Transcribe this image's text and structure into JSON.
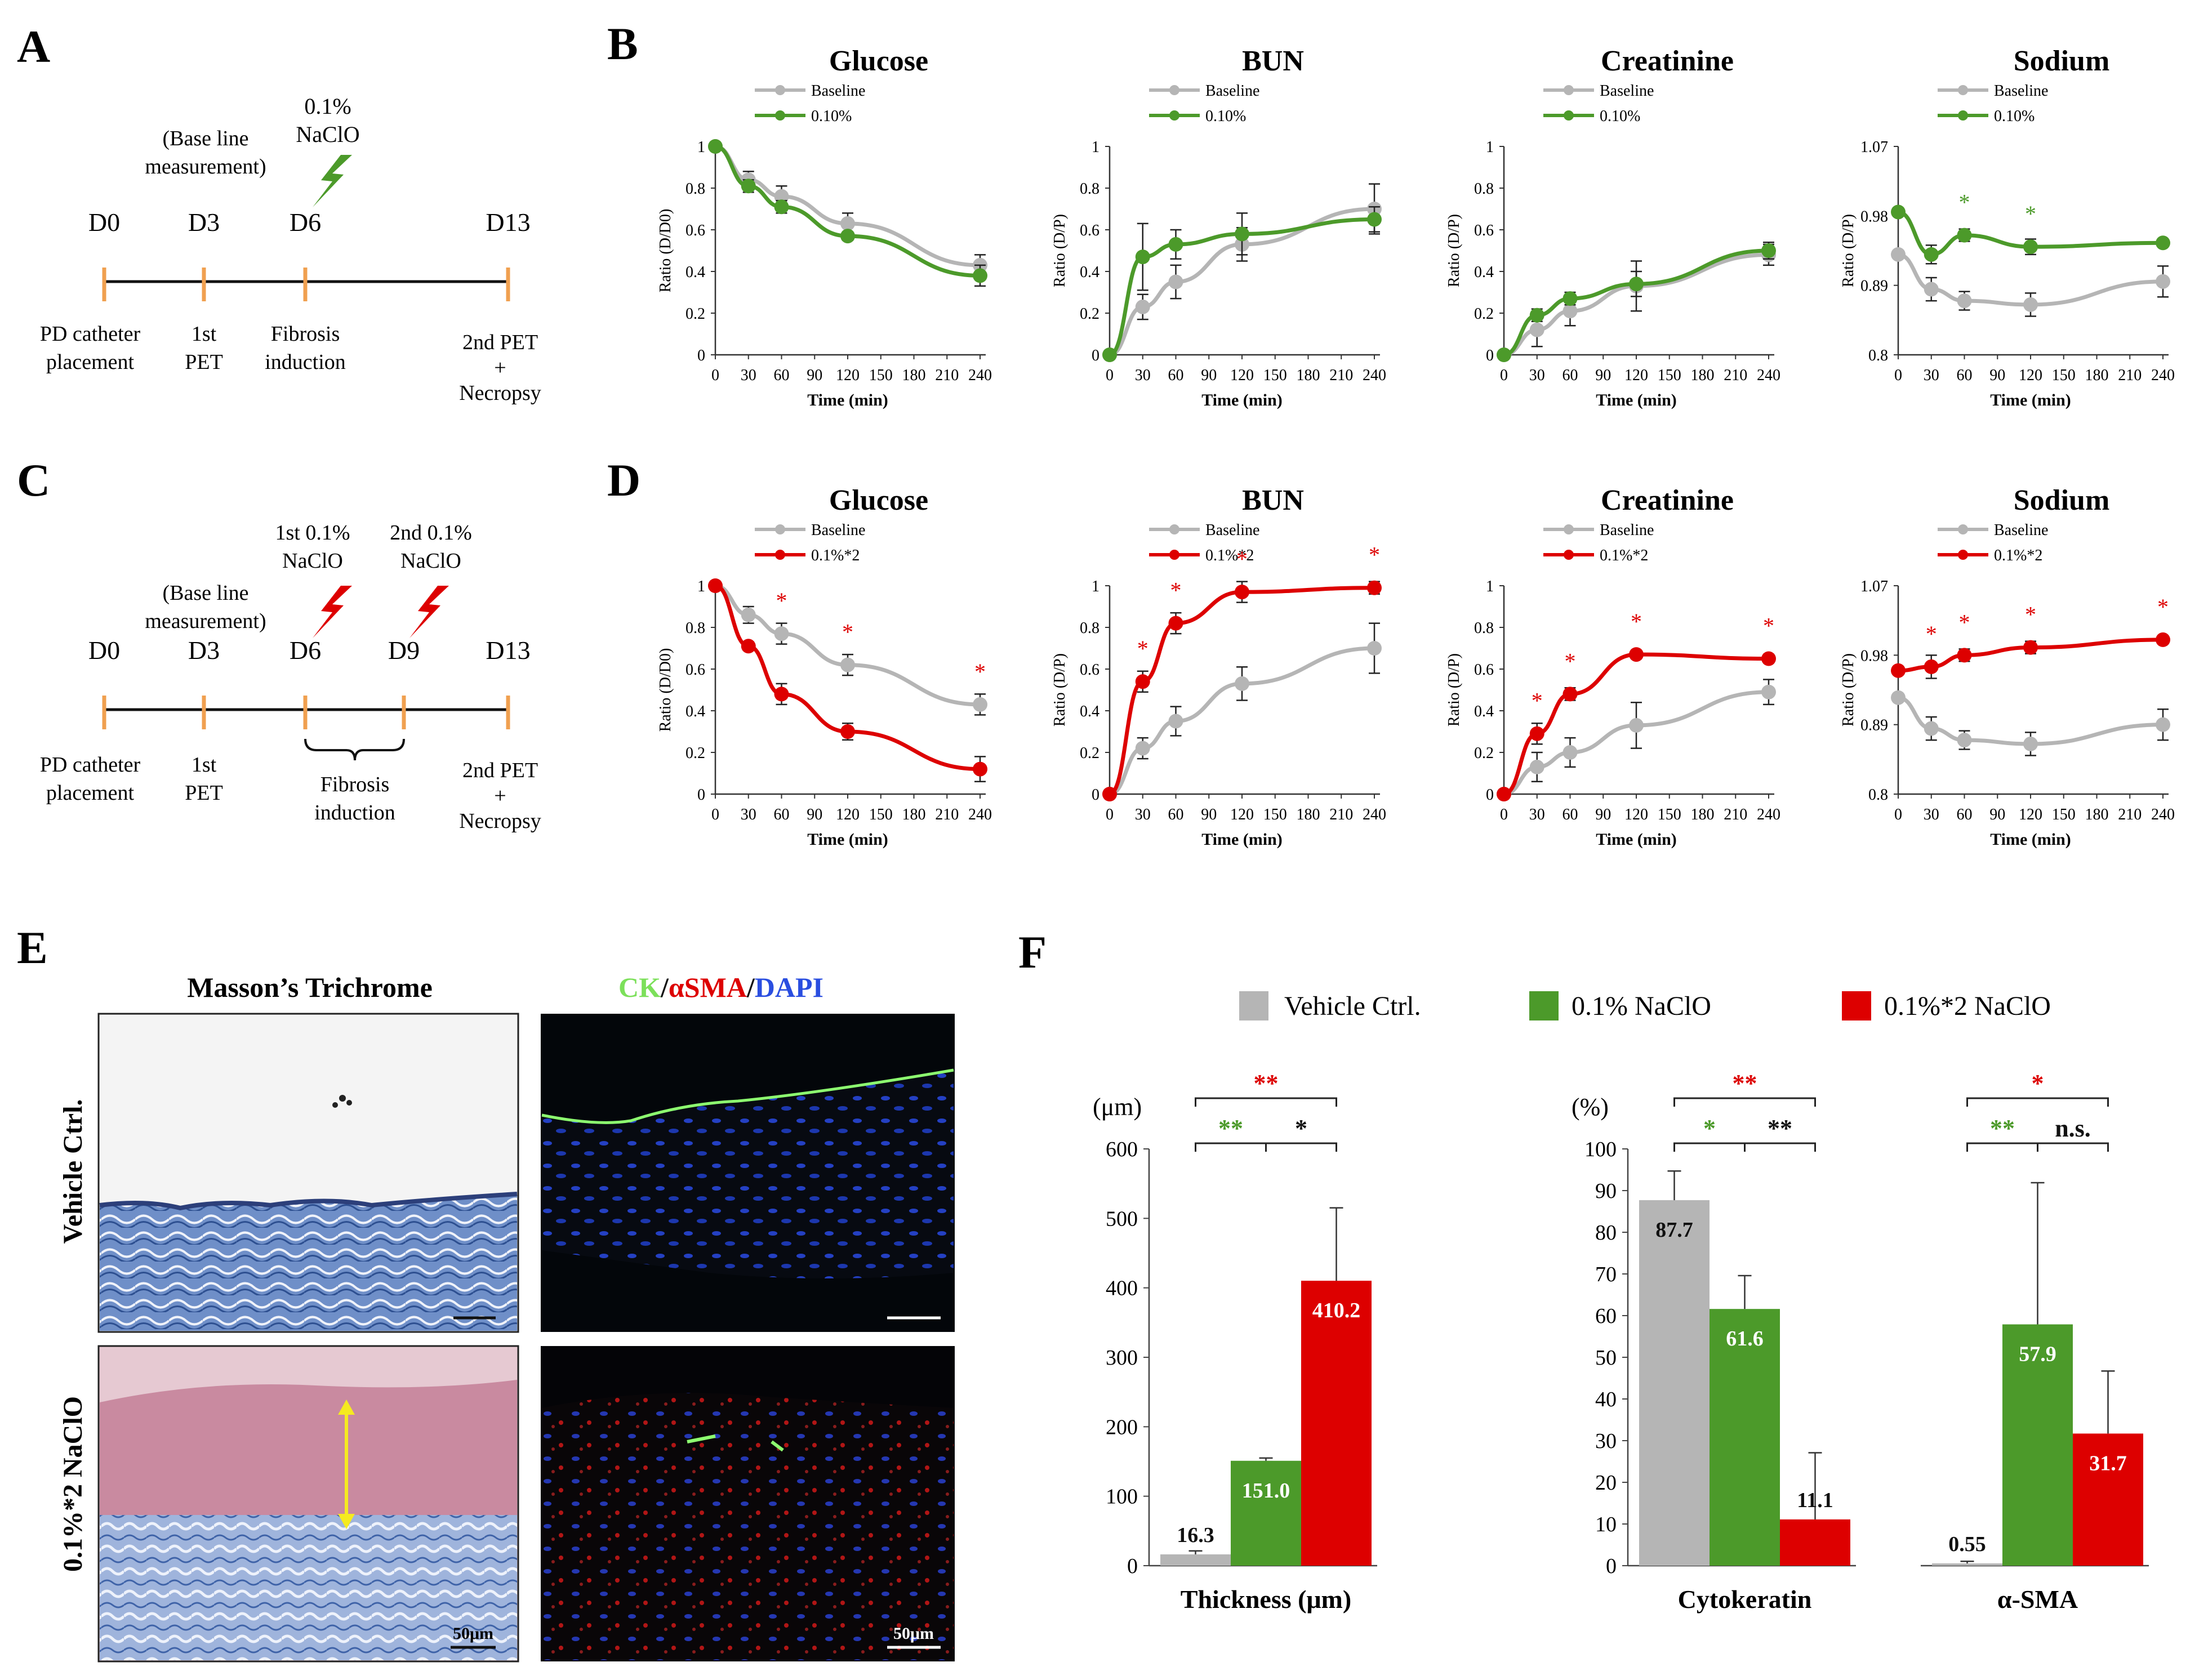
{
  "colors": {
    "grey": "#b5b5b5",
    "green": "#4c9a2a",
    "red": "#dd0000",
    "orange": "#f0a050",
    "black": "#111111"
  },
  "panel_letters": {
    "a": "A",
    "b": "B",
    "c": "C",
    "d": "D",
    "e": "E",
    "f": "F"
  },
  "timeline_a": {
    "days": [
      "D0",
      "D3",
      "D6",
      "D13"
    ],
    "baseline_label": [
      "(Base line",
      "measurement)"
    ],
    "injection_label": [
      "0.1%",
      "NaClO"
    ],
    "events": [
      {
        "lines": [
          "PD catheter",
          "placement"
        ]
      },
      {
        "lines": [
          "1st",
          "PET"
        ]
      },
      {
        "lines": [
          "Fibrosis",
          "induction"
        ]
      },
      {
        "lines": [
          "2nd PET",
          "+",
          "Necropsy"
        ]
      }
    ]
  },
  "timeline_c": {
    "days": [
      "D0",
      "D3",
      "D6",
      "D9",
      "D13"
    ],
    "baseline_label": [
      "(Base line",
      "measurement)"
    ],
    "injection1_label": [
      "1st 0.1%",
      "NaClO"
    ],
    "injection2_label": [
      "2nd 0.1%",
      "NaClO"
    ],
    "events": [
      {
        "lines": [
          "PD catheter",
          "placement"
        ]
      },
      {
        "lines": [
          "1st",
          "PET"
        ]
      },
      {
        "lines": [
          "Fibrosis",
          "induction"
        ]
      },
      {
        "lines": [
          "2nd PET",
          "+",
          "Necropsy"
        ]
      }
    ]
  },
  "panel_e": {
    "col1_title": "Masson’s Trichrome",
    "col2_title_parts": [
      "CK",
      "/",
      "αSMA",
      "/",
      "DAPI"
    ],
    "row1_label": "Vehicle Ctrl.",
    "row2_label": "0.1%*2 NaClO",
    "scale_bar": "50μm"
  },
  "chart_data": [
    {
      "id": "B-glucose",
      "type": "line",
      "title": "Glucose",
      "xlabel": "Time (min)",
      "ylabel": "Ratio (D/D0)",
      "x_ticks": [
        0,
        30,
        60,
        90,
        120,
        150,
        180,
        210,
        240
      ],
      "y_ticks": [
        "0",
        "0.2",
        "0.4",
        "0.6",
        "0.8",
        "1"
      ],
      "ylim": [
        0,
        1
      ],
      "legend": [
        "Baseline",
        "0.10%"
      ],
      "series": [
        {
          "name": "Baseline",
          "color": "grey",
          "x": [
            0,
            30,
            60,
            120,
            240
          ],
          "values": [
            1,
            0.84,
            0.76,
            0.63,
            0.43
          ],
          "err": [
            0,
            0.04,
            0.05,
            0.05,
            0.05
          ]
        },
        {
          "name": "0.10%",
          "color": "green",
          "x": [
            0,
            30,
            60,
            120,
            240
          ],
          "values": [
            1,
            0.81,
            0.71,
            0.57,
            0.38
          ],
          "err": [
            0,
            0.03,
            0.03,
            0.02,
            0.05
          ]
        }
      ],
      "stars": []
    },
    {
      "id": "B-bun",
      "type": "line",
      "title": "BUN",
      "xlabel": "Time (min)",
      "ylabel": "Ratio (D/P)",
      "x_ticks": [
        0,
        30,
        60,
        90,
        120,
        150,
        180,
        210,
        240
      ],
      "y_ticks": [
        "0",
        "0.2",
        "0.4",
        "0.6",
        "0.8",
        "1"
      ],
      "ylim": [
        0,
        1
      ],
      "legend": [
        "Baseline",
        "0.10%"
      ],
      "series": [
        {
          "name": "Baseline",
          "color": "grey",
          "x": [
            0,
            30,
            60,
            120,
            240
          ],
          "values": [
            0,
            0.23,
            0.35,
            0.53,
            0.7
          ],
          "err": [
            0,
            0.06,
            0.08,
            0.08,
            0.12
          ]
        },
        {
          "name": "0.10%",
          "color": "green",
          "x": [
            0,
            30,
            60,
            120,
            240
          ],
          "values": [
            0,
            0.47,
            0.53,
            0.58,
            0.65
          ],
          "err": [
            0,
            0.16,
            0.07,
            0.1,
            0.06
          ]
        }
      ],
      "stars": []
    },
    {
      "id": "B-creatinine",
      "type": "line",
      "title": "Creatinine",
      "xlabel": "Time (min)",
      "ylabel": "Ratio (D/P)",
      "x_ticks": [
        0,
        30,
        60,
        90,
        120,
        150,
        180,
        210,
        240
      ],
      "y_ticks": [
        "0",
        "0.2",
        "0.4",
        "0.6",
        "0.8",
        "1"
      ],
      "ylim": [
        0,
        1
      ],
      "legend": [
        "Baseline",
        "0.10%"
      ],
      "series": [
        {
          "name": "Baseline",
          "color": "grey",
          "x": [
            0,
            30,
            60,
            120,
            240
          ],
          "values": [
            0,
            0.12,
            0.21,
            0.33,
            0.48
          ],
          "err": [
            0,
            0.08,
            0.07,
            0.12,
            0.05
          ]
        },
        {
          "name": "0.10%",
          "color": "green",
          "x": [
            0,
            30,
            60,
            120,
            240
          ],
          "values": [
            0,
            0.19,
            0.27,
            0.34,
            0.5
          ],
          "err": [
            0,
            0.03,
            0.03,
            0.06,
            0.04
          ]
        }
      ],
      "stars": []
    },
    {
      "id": "B-sodium",
      "type": "line",
      "title": "Sodium",
      "xlabel": "Time (min)",
      "ylabel": "Ratio (D/P)",
      "x_ticks": [
        0,
        30,
        60,
        90,
        120,
        150,
        180,
        210,
        240
      ],
      "y_ticks": [
        "0.8",
        "0.89",
        "0.98",
        "1.07"
      ],
      "ylim": [
        0.8,
        1.07
      ],
      "legend": [
        "Baseline",
        "0.10%"
      ],
      "series": [
        {
          "name": "Baseline",
          "color": "grey",
          "x": [
            0,
            30,
            60,
            120,
            240
          ],
          "values": [
            0.93,
            0.885,
            0.87,
            0.865,
            0.895
          ],
          "err": [
            0,
            0.015,
            0.012,
            0.015,
            0.02
          ]
        },
        {
          "name": "0.10%",
          "color": "green",
          "x": [
            0,
            30,
            60,
            120,
            240
          ],
          "values": [
            0.985,
            0.93,
            0.955,
            0.94,
            0.945
          ],
          "err": [
            0,
            0.012,
            0.008,
            0.01,
            0.005
          ]
        }
      ],
      "stars": [
        {
          "x": 60,
          "value": 0.955,
          "color": "green"
        },
        {
          "x": 120,
          "value": 0.94,
          "color": "green"
        }
      ]
    },
    {
      "id": "D-glucose",
      "type": "line",
      "title": "Glucose",
      "xlabel": "Time (min)",
      "ylabel": "Ratio (D/D0)",
      "x_ticks": [
        0,
        30,
        60,
        90,
        120,
        150,
        180,
        210,
        240
      ],
      "y_ticks": [
        "0",
        "0.2",
        "0.4",
        "0.6",
        "0.8",
        "1"
      ],
      "ylim": [
        0,
        1
      ],
      "legend": [
        "Baseline",
        "0.1%*2"
      ],
      "series": [
        {
          "name": "Baseline",
          "color": "grey",
          "x": [
            0,
            30,
            60,
            120,
            240
          ],
          "values": [
            1,
            0.86,
            0.77,
            0.62,
            0.43
          ],
          "err": [
            0,
            0.04,
            0.05,
            0.05,
            0.05
          ]
        },
        {
          "name": "0.1%*2",
          "color": "red",
          "x": [
            0,
            30,
            60,
            120,
            240
          ],
          "values": [
            1,
            0.71,
            0.48,
            0.3,
            0.12
          ],
          "err": [
            0,
            0.02,
            0.05,
            0.04,
            0.06
          ]
        }
      ],
      "stars": [
        {
          "x": 60,
          "value": 0.77,
          "color": "red"
        },
        {
          "x": 120,
          "value": 0.62,
          "color": "red"
        },
        {
          "x": 240,
          "value": 0.43,
          "color": "red"
        }
      ]
    },
    {
      "id": "D-bun",
      "type": "line",
      "title": "BUN",
      "xlabel": "Time (min)",
      "ylabel": "Ratio (D/P)",
      "x_ticks": [
        0,
        30,
        60,
        90,
        120,
        150,
        180,
        210,
        240
      ],
      "y_ticks": [
        "0",
        "0.2",
        "0.4",
        "0.6",
        "0.8",
        "1"
      ],
      "ylim": [
        0,
        1
      ],
      "legend": [
        "Baseline",
        "0.1%*2"
      ],
      "series": [
        {
          "name": "Baseline",
          "color": "grey",
          "x": [
            0,
            30,
            60,
            120,
            240
          ],
          "values": [
            0,
            0.22,
            0.35,
            0.53,
            0.7
          ],
          "err": [
            0,
            0.05,
            0.07,
            0.08,
            0.12
          ]
        },
        {
          "name": "0.1%*2",
          "color": "red",
          "x": [
            0,
            30,
            60,
            120,
            240
          ],
          "values": [
            0,
            0.54,
            0.82,
            0.97,
            0.99
          ],
          "err": [
            0,
            0.05,
            0.05,
            0.05,
            0.03
          ]
        }
      ],
      "stars": [
        {
          "x": 30,
          "value": 0.54,
          "color": "red"
        },
        {
          "x": 60,
          "value": 0.82,
          "color": "red"
        },
        {
          "x": 120,
          "value": 0.97,
          "color": "red"
        },
        {
          "x": 240,
          "value": 0.99,
          "color": "red"
        }
      ]
    },
    {
      "id": "D-creatinine",
      "type": "line",
      "title": "Creatinine",
      "xlabel": "Time (min)",
      "ylabel": "Ratio (D/P)",
      "x_ticks": [
        0,
        30,
        60,
        90,
        120,
        150,
        180,
        210,
        240
      ],
      "y_ticks": [
        "0",
        "0.2",
        "0.4",
        "0.6",
        "0.8",
        "1"
      ],
      "ylim": [
        0,
        1
      ],
      "legend": [
        "Baseline",
        "0.1%*2"
      ],
      "series": [
        {
          "name": "Baseline",
          "color": "grey",
          "x": [
            0,
            30,
            60,
            120,
            240
          ],
          "values": [
            0,
            0.13,
            0.2,
            0.33,
            0.49
          ],
          "err": [
            0,
            0.07,
            0.07,
            0.11,
            0.06
          ]
        },
        {
          "name": "0.1%*2",
          "color": "red",
          "x": [
            0,
            30,
            60,
            120,
            240
          ],
          "values": [
            0,
            0.29,
            0.48,
            0.67,
            0.65
          ],
          "err": [
            0,
            0.05,
            0.03,
            0.02,
            0.02
          ]
        }
      ],
      "stars": [
        {
          "x": 30,
          "value": 0.29,
          "color": "red"
        },
        {
          "x": 60,
          "value": 0.48,
          "color": "red"
        },
        {
          "x": 120,
          "value": 0.67,
          "color": "red"
        },
        {
          "x": 240,
          "value": 0.65,
          "color": "red"
        }
      ]
    },
    {
      "id": "D-sodium",
      "type": "line",
      "title": "Sodium",
      "xlabel": "Time (min)",
      "ylabel": "Ratio (D/P)",
      "x_ticks": [
        0,
        30,
        60,
        90,
        120,
        150,
        180,
        210,
        240
      ],
      "y_ticks": [
        "0.8",
        "0.89",
        "0.98",
        "1.07"
      ],
      "ylim": [
        0.8,
        1.07
      ],
      "legend": [
        "Baseline",
        "0.1%*2"
      ],
      "series": [
        {
          "name": "Baseline",
          "color": "grey",
          "x": [
            0,
            30,
            60,
            120,
            240
          ],
          "values": [
            0.925,
            0.885,
            0.87,
            0.865,
            0.89
          ],
          "err": [
            0,
            0.015,
            0.012,
            0.015,
            0.02
          ]
        },
        {
          "name": "0.1%*2",
          "color": "red",
          "x": [
            0,
            30,
            60,
            120,
            240
          ],
          "values": [
            0.96,
            0.965,
            0.98,
            0.99,
            1.0
          ],
          "err": [
            0,
            0.015,
            0.008,
            0.008,
            0.005
          ]
        }
      ],
      "stars": [
        {
          "x": 30,
          "value": 0.965,
          "color": "red"
        },
        {
          "x": 60,
          "value": 0.98,
          "color": "red"
        },
        {
          "x": 120,
          "value": 0.99,
          "color": "red"
        },
        {
          "x": 240,
          "value": 1.0,
          "color": "red"
        }
      ]
    },
    {
      "id": "F-thickness",
      "type": "bar",
      "xlabel": "Thickness (μm)",
      "ylabel": "(μm)",
      "y_ticks": [
        "0",
        "100",
        "200",
        "300",
        "400",
        "500",
        "600"
      ],
      "ylim": [
        0,
        600
      ],
      "bars": [
        {
          "group": "Vehicle Ctrl.",
          "color": "grey",
          "value": 16.3,
          "label": "16.3",
          "err": 5
        },
        {
          "group": "0.1% NaClO",
          "color": "green",
          "value": 151,
          "label": "151.0",
          "err": 4
        },
        {
          "group": "0.1%*2 NaClO",
          "color": "red",
          "value": 410.2,
          "label": "410.2",
          "err": 105
        }
      ],
      "brackets": [
        {
          "from": 0,
          "to": 2,
          "level": "top",
          "text": "**",
          "color": "red"
        },
        {
          "from": 0,
          "to": 1,
          "level": "low",
          "text": "**",
          "color": "green"
        },
        {
          "from": 1,
          "to": 2,
          "level": "low",
          "text": "*",
          "color": "black"
        }
      ]
    },
    {
      "id": "F-cytokeratin",
      "type": "bar",
      "xlabel": "Cytokeratin",
      "ylabel": "(%)",
      "y_ticks": [
        "0",
        "10",
        "20",
        "30",
        "40",
        "50",
        "60",
        "70",
        "80",
        "90",
        "100"
      ],
      "ylim": [
        0,
        100
      ],
      "bars": [
        {
          "group": "Vehicle Ctrl.",
          "color": "grey",
          "value": 87.7,
          "label": "87.7",
          "err": 7
        },
        {
          "group": "0.1% NaClO",
          "color": "green",
          "value": 61.6,
          "label": "61.6",
          "err": 8
        },
        {
          "group": "0.1%*2 NaClO",
          "color": "red",
          "value": 11.1,
          "label": "11.1",
          "err": 16
        }
      ],
      "brackets": [
        {
          "from": 0,
          "to": 2,
          "level": "top",
          "text": "**",
          "color": "red"
        },
        {
          "from": 0,
          "to": 1,
          "level": "low",
          "text": "*",
          "color": "green"
        },
        {
          "from": 1,
          "to": 2,
          "level": "low",
          "text": "**",
          "color": "black"
        }
      ]
    },
    {
      "id": "F-asma",
      "type": "bar",
      "xlabel": "α-SMA",
      "ylabel": "",
      "y_ticks": [],
      "ylim": [
        0,
        100
      ],
      "bars": [
        {
          "group": "Vehicle Ctrl.",
          "color": "grey",
          "value": 0.55,
          "label": "0.55",
          "err": 0.5
        },
        {
          "group": "0.1% NaClO",
          "color": "green",
          "value": 57.9,
          "label": "57.9",
          "err": 34
        },
        {
          "group": "0.1%*2 NaClO",
          "color": "red",
          "value": 31.7,
          "label": "31.7",
          "err": 15
        }
      ],
      "brackets": [
        {
          "from": 0,
          "to": 2,
          "level": "top",
          "text": "*",
          "color": "red"
        },
        {
          "from": 0,
          "to": 1,
          "level": "low",
          "text": "**",
          "color": "green"
        },
        {
          "from": 1,
          "to": 2,
          "level": "low",
          "text": "n.s.",
          "color": "black"
        }
      ]
    }
  ],
  "bar_legend": [
    "Vehicle Ctrl.",
    "0.1% NaClO",
    "0.1%*2 NaClO"
  ]
}
